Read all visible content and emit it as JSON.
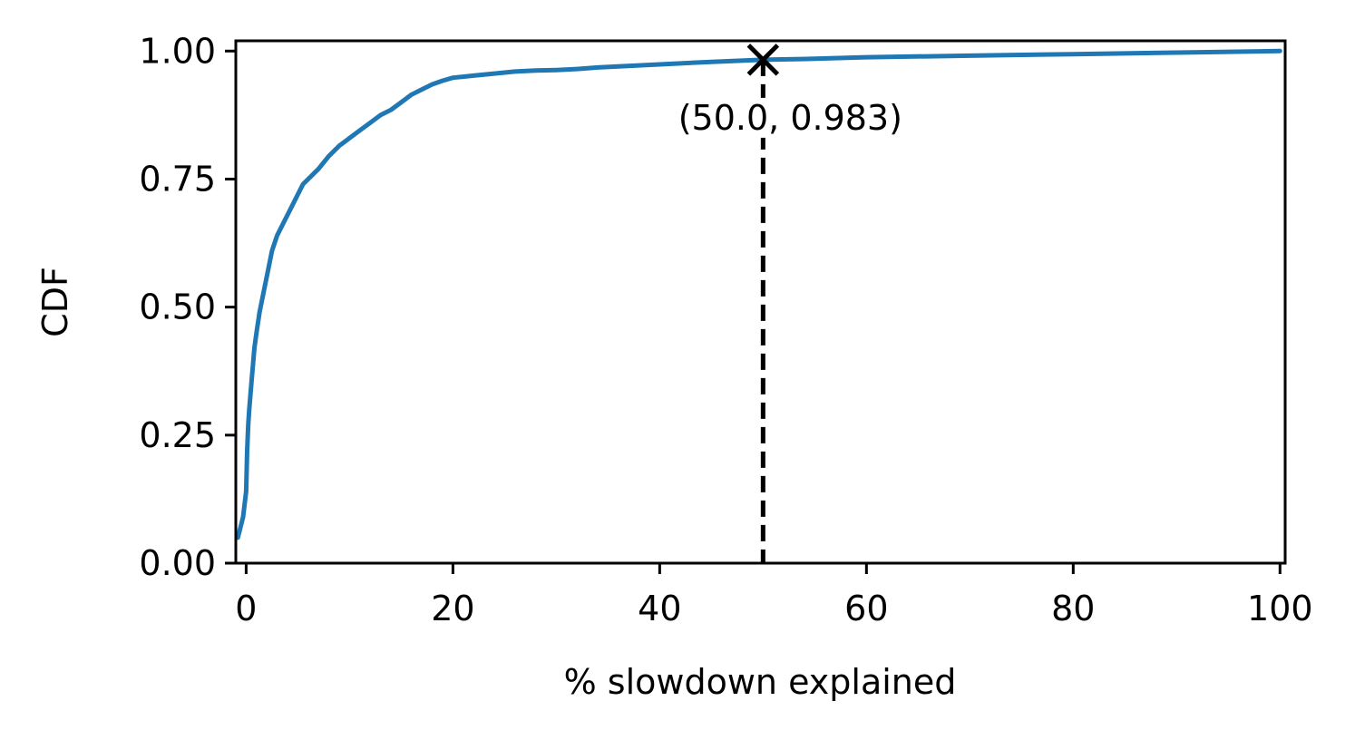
{
  "chart_data": {
    "type": "line",
    "xlabel": "% slowdown explained",
    "ylabel": "CDF",
    "xlim": [
      -1,
      100.5
    ],
    "ylim": [
      0.0,
      1.02
    ],
    "xticks": [
      0,
      20,
      40,
      60,
      80,
      100
    ],
    "xtick_labels": [
      "0",
      "20",
      "40",
      "60",
      "80",
      "100"
    ],
    "yticks": [
      0.0,
      0.25,
      0.5,
      0.75,
      1.0
    ],
    "ytick_labels": [
      "0.00",
      "0.25",
      "0.50",
      "0.75",
      "1.00"
    ],
    "grid": false,
    "series": [
      {
        "color": "#1f77b4",
        "x": [
          -0.8,
          -0.3,
          0.0,
          0.1,
          0.2,
          0.3,
          0.5,
          0.8,
          1.0,
          1.3,
          1.6,
          2.0,
          2.5,
          3.0,
          3.5,
          4.0,
          4.5,
          5.0,
          5.5,
          6.0,
          7.0,
          8.0,
          9.0,
          10.0,
          11.0,
          12.0,
          13.0,
          14.0,
          15.0,
          16.0,
          17.0,
          18.0,
          19.0,
          20.0,
          22.0,
          24.0,
          26.0,
          28.0,
          30.0,
          32.0,
          34.0,
          36.0,
          40.0,
          45.0,
          50.0,
          55.0,
          60.0,
          70.0,
          80.0,
          90.0,
          100.0
        ],
        "y": [
          0.05,
          0.09,
          0.14,
          0.22,
          0.27,
          0.3,
          0.35,
          0.42,
          0.45,
          0.49,
          0.52,
          0.56,
          0.61,
          0.64,
          0.66,
          0.68,
          0.7,
          0.72,
          0.74,
          0.75,
          0.77,
          0.795,
          0.815,
          0.83,
          0.845,
          0.86,
          0.875,
          0.885,
          0.9,
          0.915,
          0.925,
          0.935,
          0.942,
          0.948,
          0.952,
          0.956,
          0.96,
          0.962,
          0.963,
          0.965,
          0.968,
          0.97,
          0.974,
          0.979,
          0.983,
          0.985,
          0.988,
          0.991,
          0.994,
          0.997,
          1.0
        ]
      }
    ],
    "marker": {
      "x": 50.0,
      "y": 0.983,
      "symbol": "x",
      "color": "#000000"
    },
    "vline": {
      "x": 50.0,
      "style": "dashed",
      "color": "#000000"
    },
    "annotation": {
      "text": "(50.0, 0.983)",
      "x": 50.0,
      "y": 0.983
    }
  }
}
